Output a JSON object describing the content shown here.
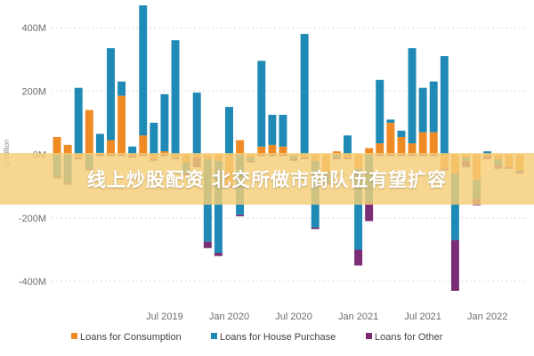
{
  "chart_data": {
    "type": "bar",
    "stacked": true,
    "ylabel": "C Million",
    "yticks": [
      {
        "value": 400,
        "label": "400M"
      },
      {
        "value": 200,
        "label": "200M"
      },
      {
        "value": 0,
        "label": "0M"
      },
      {
        "value": -200,
        "label": "-200M"
      },
      {
        "value": -400,
        "label": "-400M"
      }
    ],
    "ylim": [
      -450,
      470
    ],
    "xticks": [
      {
        "month": "2019-07",
        "label": "Jul 2019"
      },
      {
        "month": "2020-01",
        "label": "Jan 2020"
      },
      {
        "month": "2020-07",
        "label": "Jul 2020"
      },
      {
        "month": "2021-01",
        "label": "Jan 2021"
      },
      {
        "month": "2021-07",
        "label": "Jul 2021"
      },
      {
        "month": "2022-01",
        "label": "Jan 2022"
      }
    ],
    "legend_position": "bottom",
    "categories": [
      "2018-09",
      "2018-10",
      "2018-11",
      "2018-12",
      "2019-01",
      "2019-02",
      "2019-03",
      "2019-04",
      "2019-05",
      "2019-06",
      "2019-07",
      "2019-08",
      "2019-09",
      "2019-10",
      "2019-11",
      "2019-12",
      "2020-01",
      "2020-02",
      "2020-03",
      "2020-04",
      "2020-05",
      "2020-06",
      "2020-07",
      "2020-08",
      "2020-09",
      "2020-10",
      "2020-11",
      "2020-12",
      "2021-01",
      "2021-02",
      "2021-03",
      "2021-04",
      "2021-05",
      "2021-06",
      "2021-07",
      "2021-08",
      "2021-09",
      "2021-10",
      "2021-11",
      "2021-12",
      "2022-01",
      "2022-02",
      "2022-03",
      "2022-04"
    ],
    "series": [
      {
        "name": "Loans for Consumption",
        "color": "#f08a24",
        "values": [
          55,
          30,
          -10,
          140,
          5,
          45,
          185,
          -5,
          60,
          -15,
          10,
          -10,
          -25,
          -10,
          -15,
          -20,
          -100,
          45,
          -10,
          25,
          30,
          25,
          -5,
          -10,
          -20,
          -55,
          10,
          -10,
          -45,
          20,
          35,
          100,
          55,
          35,
          70,
          70,
          -45,
          -60,
          -10,
          -80,
          -5,
          -15,
          -40,
          -50
        ]
      },
      {
        "name": "Loans for House Purchase",
        "color": "#1f8ab6",
        "values": [
          -70,
          -90,
          210,
          -45,
          60,
          290,
          45,
          25,
          410,
          100,
          180,
          360,
          -35,
          195,
          -260,
          -290,
          150,
          -190,
          -10,
          270,
          95,
          100,
          -10,
          380,
          -210,
          -35,
          -10,
          60,
          -255,
          -150,
          200,
          10,
          20,
          300,
          140,
          160,
          310,
          -210,
          -10,
          -60,
          10,
          -20,
          0,
          -5
        ]
      },
      {
        "name": "Loans for Other",
        "color": "#7a2d73",
        "values": [
          -5,
          -5,
          -5,
          -5,
          -5,
          -5,
          -5,
          -5,
          -5,
          -5,
          -5,
          -5,
          -5,
          -30,
          -20,
          -10,
          -5,
          -5,
          -5,
          -5,
          -5,
          -5,
          -5,
          -5,
          -5,
          -5,
          -5,
          -5,
          -50,
          -60,
          -5,
          -5,
          -5,
          -5,
          -5,
          -5,
          -5,
          -160,
          -20,
          -20,
          -10,
          -10,
          -5,
          -5
        ]
      }
    ]
  },
  "overlay": {
    "text": "线上炒股配资 北交所做市商队伍有望扩容"
  }
}
